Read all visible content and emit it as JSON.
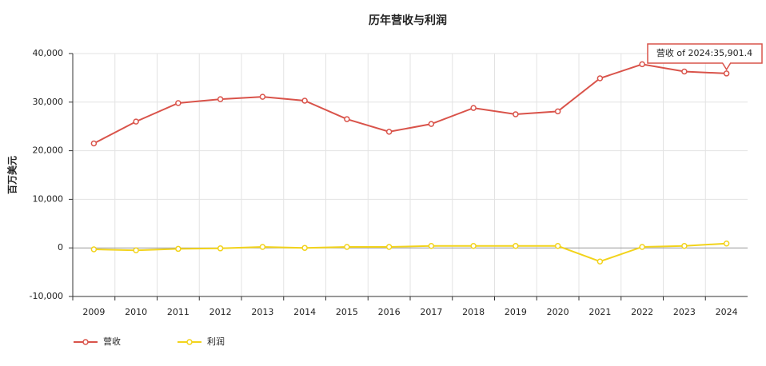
{
  "chart_data": {
    "type": "line",
    "title": "历年营收与利润",
    "y_label": "百万美元",
    "categories": [
      "2009",
      "2010",
      "2011",
      "2012",
      "2013",
      "2014",
      "2015",
      "2016",
      "2017",
      "2018",
      "2019",
      "2020",
      "2021",
      "2022",
      "2023",
      "2024"
    ],
    "series": [
      {
        "name": "营收",
        "color": "#d9534a",
        "values": [
          21500,
          26000,
          29800,
          30600,
          31100,
          30300,
          26500,
          23900,
          25500,
          28800,
          27500,
          28100,
          34900,
          37800,
          36300,
          35901.4
        ]
      },
      {
        "name": "利润",
        "color": "#f2d31b",
        "values": [
          -300,
          -500,
          -200,
          -100,
          200,
          0,
          200,
          200,
          400,
          400,
          400,
          400,
          -2800,
          200,
          400,
          900
        ]
      }
    ],
    "ylim": [
      -10000,
      40000
    ],
    "yticks": [
      {
        "value": -10000,
        "label": "-10,000"
      },
      0,
      {
        "value": 10000,
        "label": "10,000"
      },
      {
        "value": 20000,
        "label": "20,000"
      },
      {
        "value": 30000,
        "label": "30,000"
      },
      {
        "value": 40000,
        "label": "40,000"
      }
    ],
    "grid": true,
    "legend": "bottom-left",
    "tooltip": "营收 of 2024:35,901.4"
  }
}
